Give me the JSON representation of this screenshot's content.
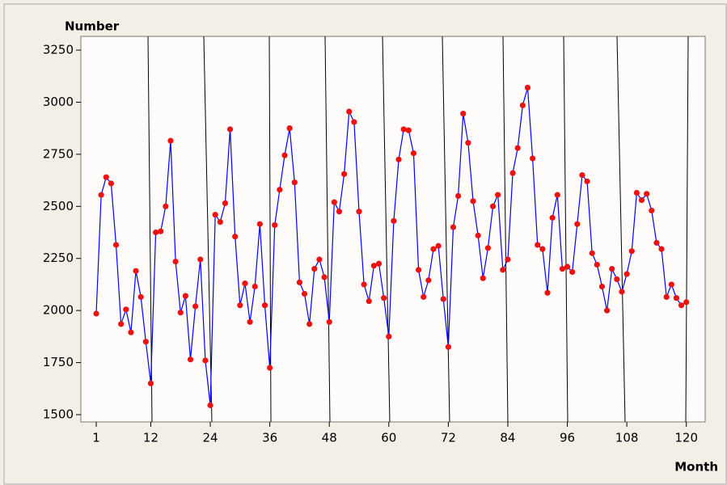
{
  "chart_data": {
    "type": "line",
    "ylabel": "Number",
    "xlabel": "Month",
    "x": [
      1,
      2,
      3,
      4,
      5,
      6,
      7,
      8,
      9,
      10,
      11,
      12,
      13,
      14,
      15,
      16,
      17,
      18,
      19,
      20,
      21,
      22,
      23,
      24,
      25,
      26,
      27,
      28,
      29,
      30,
      31,
      32,
      33,
      34,
      35,
      36,
      37,
      38,
      39,
      40,
      41,
      42,
      43,
      44,
      45,
      46,
      47,
      48,
      49,
      50,
      51,
      52,
      53,
      54,
      55,
      56,
      57,
      58,
      59,
      60,
      61,
      62,
      63,
      64,
      65,
      66,
      67,
      68,
      69,
      70,
      71,
      72,
      73,
      74,
      75,
      76,
      77,
      78,
      79,
      80,
      81,
      82,
      83,
      84,
      85,
      86,
      87,
      88,
      89,
      90,
      91,
      92,
      93,
      94,
      95,
      96,
      97,
      98,
      99,
      100,
      101,
      102,
      103,
      104,
      105,
      106,
      107,
      108,
      109,
      110,
      111,
      112,
      113,
      114,
      115,
      116,
      117,
      118,
      119,
      120
    ],
    "series": [
      {
        "color": "#0000ff",
        "marker_color": "#ee1111",
        "values": [
          1985,
          2555,
          2640,
          2610,
          2315,
          1935,
          2005,
          1895,
          2190,
          2065,
          1850,
          1650,
          2375,
          2380,
          2500,
          2815,
          2235,
          1990,
          2070,
          1765,
          2020,
          2245,
          1760,
          1545,
          2460,
          2425,
          2515,
          2870,
          2355,
          2025,
          2130,
          1945,
          2115,
          2415,
          2025,
          1725,
          2410,
          2580,
          2745,
          2875,
          2615,
          2135,
          2080,
          1935,
          2200,
          2245,
          2160,
          1945,
          2520,
          2475,
          2655,
          2955,
          2905,
          2475,
          2125,
          2045,
          2215,
          2225,
          2060,
          1875,
          2430,
          2725,
          2870,
          2865,
          2755,
          2195,
          2065,
          2145,
          2295,
          2310,
          2055,
          1825,
          2400,
          2550,
          2945,
          2805,
          2525,
          2360,
          2155,
          2300,
          2500,
          2555,
          2195,
          2245,
          2660,
          2780,
          2985,
          3070,
          2730,
          2315,
          2295,
          2085,
          2445,
          2555,
          2200,
          2210,
          2185,
          2415,
          2650,
          2620,
          2275,
          2220,
          2115,
          2000,
          2200,
          2150,
          2090,
          2175,
          2285,
          2565,
          2530,
          2560,
          2480,
          2325,
          2295,
          2065,
          2125,
          2060,
          2025,
          2040
        ]
      }
    ],
    "xlim": [
      -2.1,
      123.8
    ],
    "ylim": [
      1465,
      3316
    ],
    "xticks": [
      1,
      12,
      24,
      36,
      48,
      60,
      72,
      84,
      96,
      108,
      120
    ],
    "yticks": [
      1500,
      1750,
      2000,
      2250,
      2500,
      2750,
      3000,
      3250
    ]
  }
}
